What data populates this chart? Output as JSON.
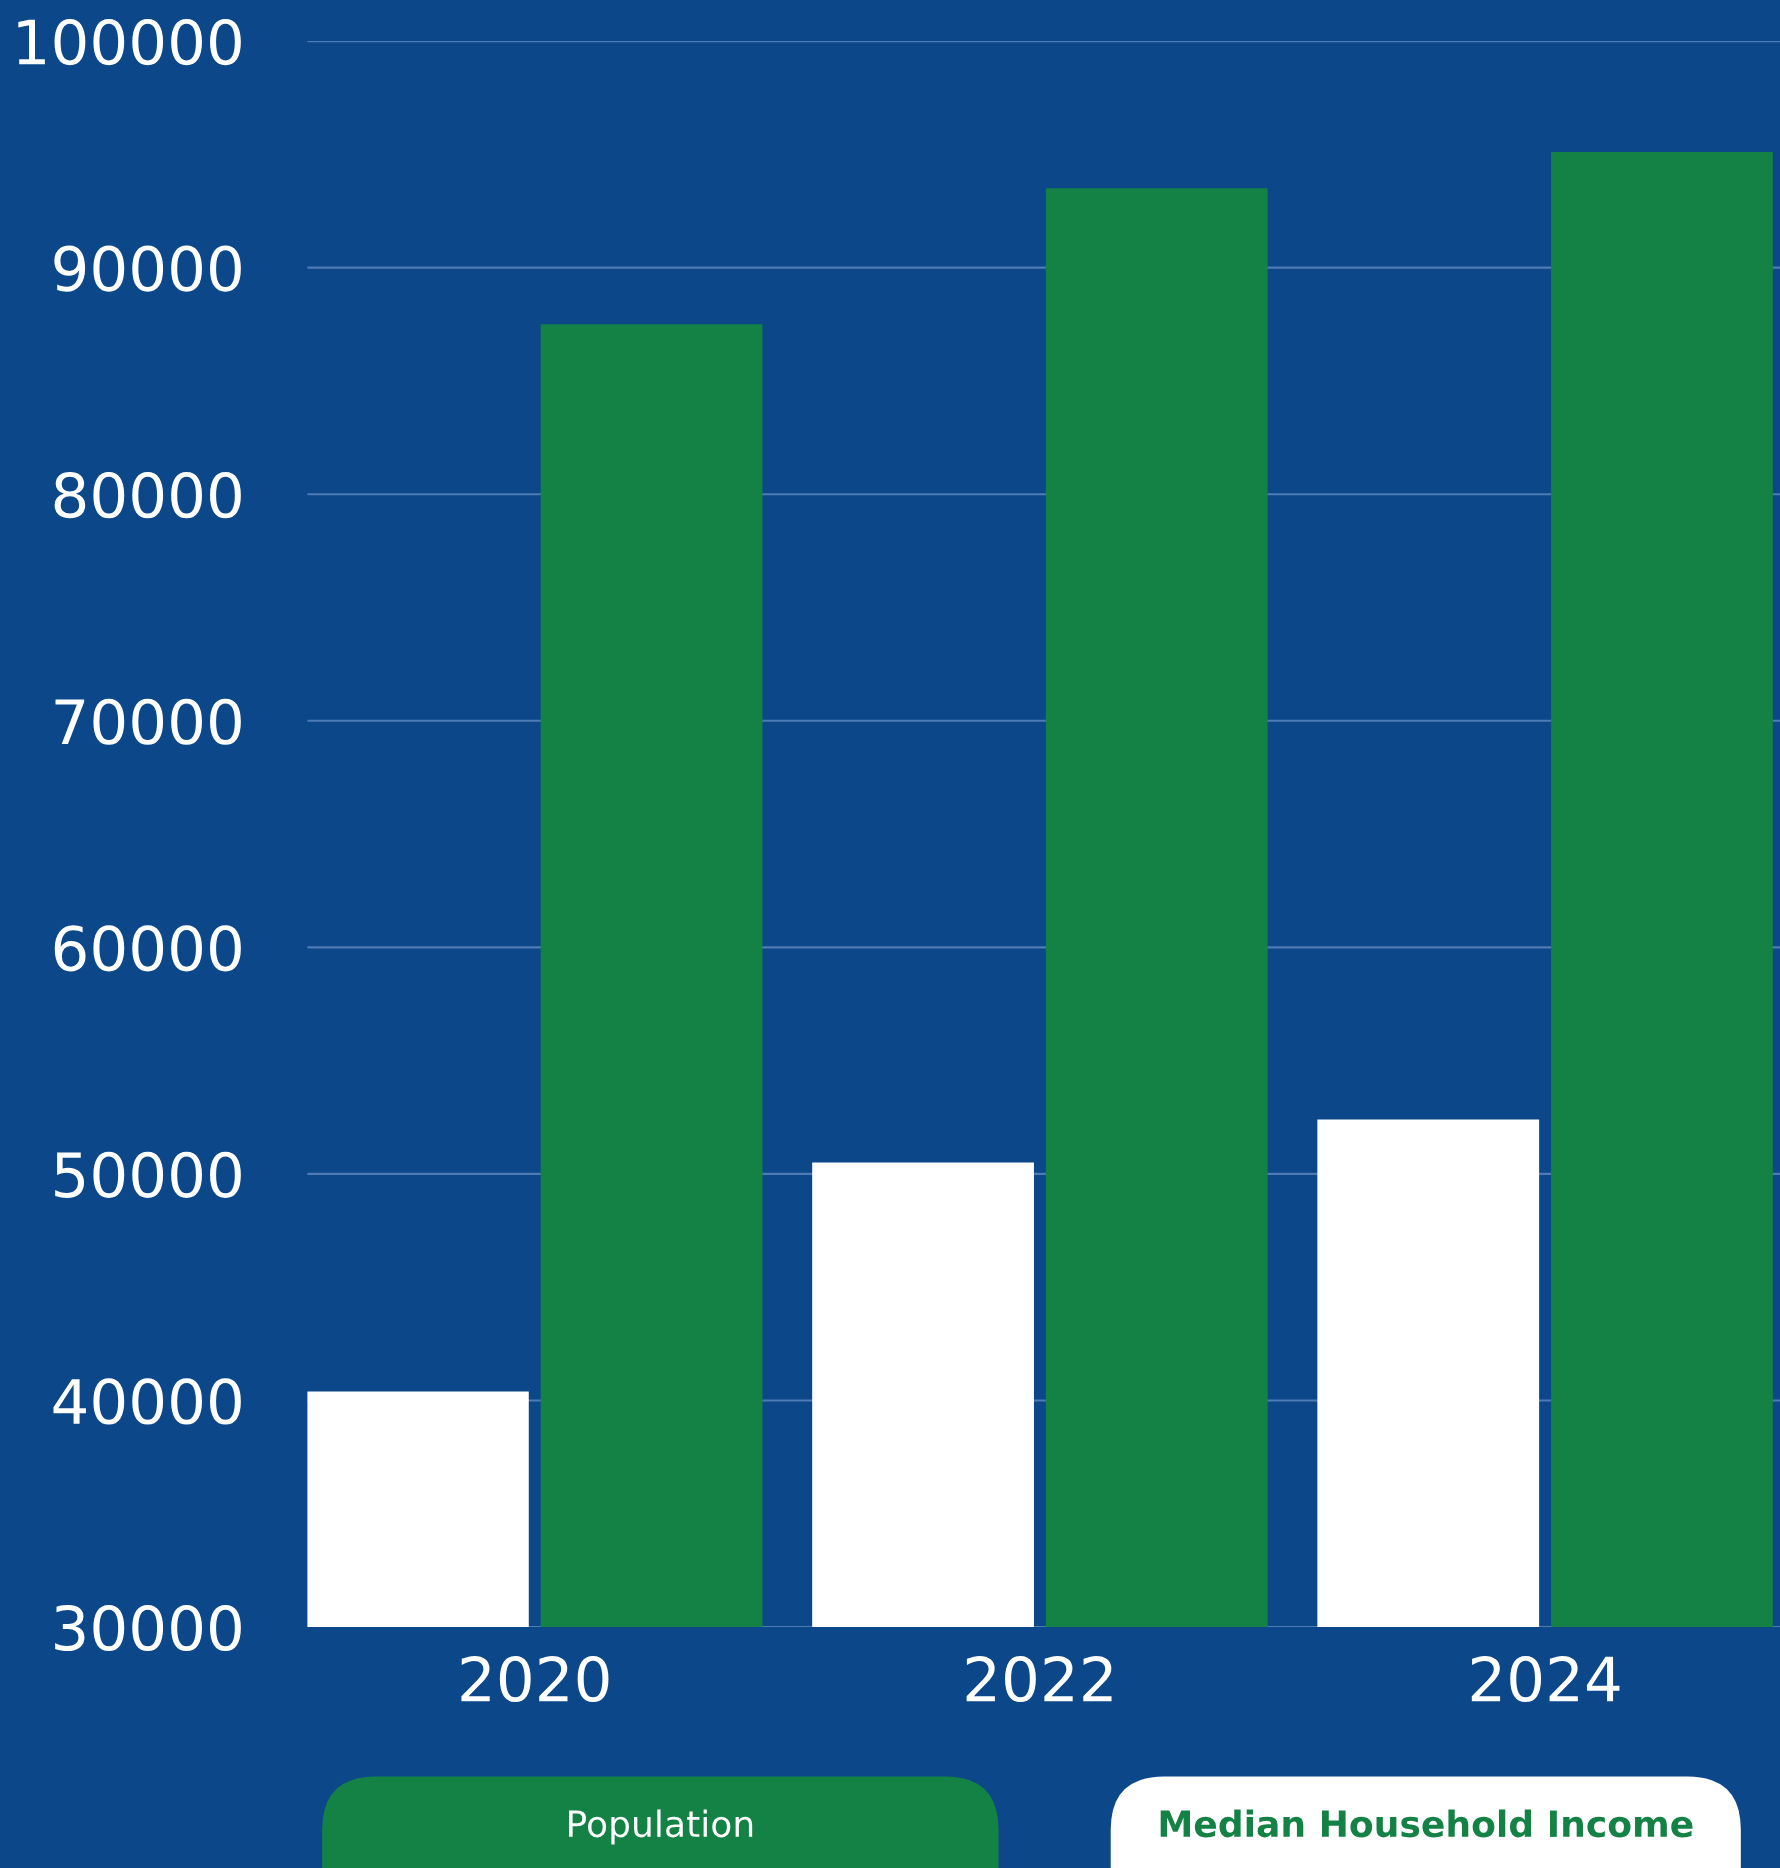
{
  "chart_data": {
    "type": "bar",
    "categories": [
      "2020",
      "2022",
      "2024"
    ],
    "series": [
      {
        "name": "Population",
        "color": "#ffffff",
        "values": [
          40400,
          50500,
          52400
        ]
      },
      {
        "name": "Median Household Income",
        "color": "#138244",
        "values": [
          87500,
          93500,
          95100
        ]
      }
    ],
    "ylim": [
      30000,
      100000
    ],
    "yticks": [
      30000,
      40000,
      50000,
      60000,
      70000,
      80000,
      90000,
      100000
    ],
    "grid": "y",
    "legend": "bottom"
  }
}
